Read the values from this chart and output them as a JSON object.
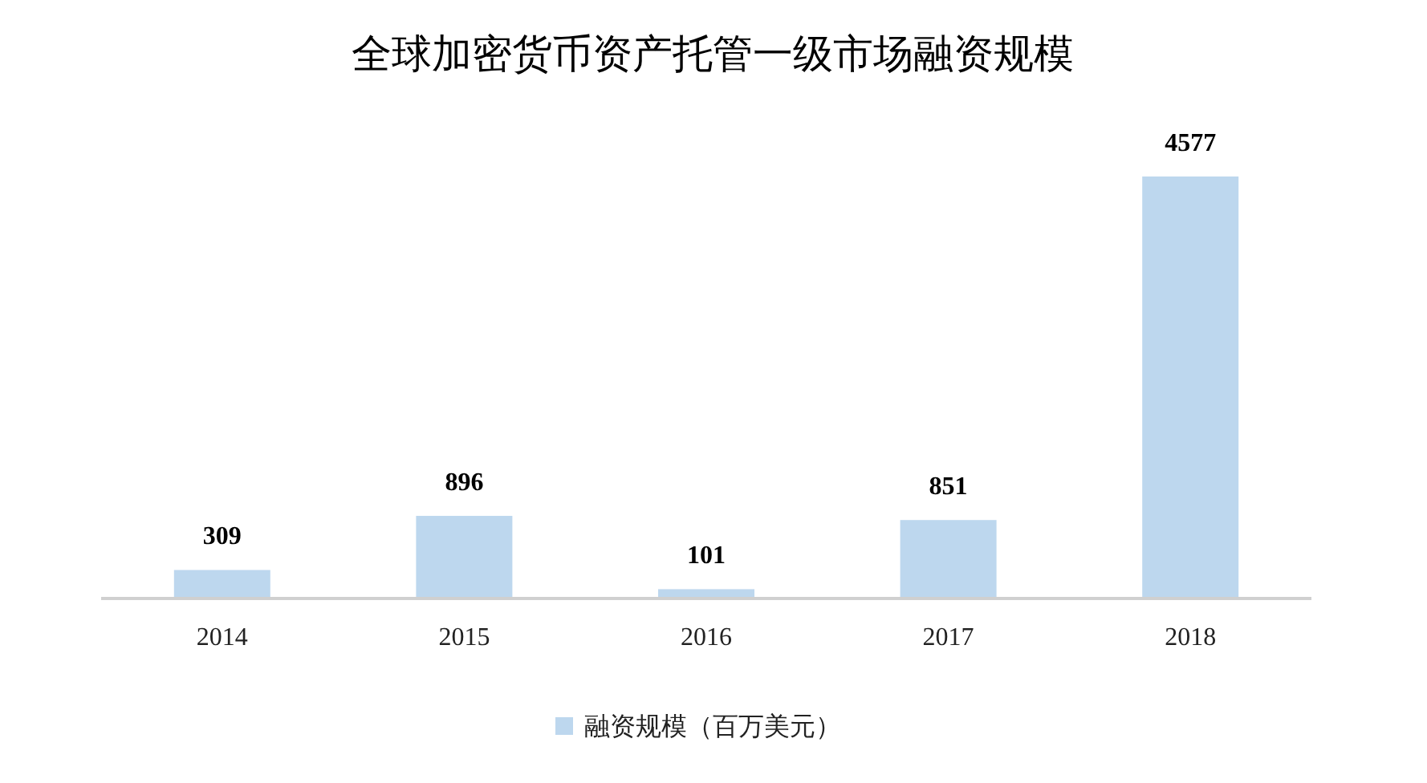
{
  "chart_data": {
    "type": "bar",
    "title": "全球加密货币资产托管一级市场融资规模",
    "categories": [
      "2014",
      "2015",
      "2016",
      "2017",
      "2018"
    ],
    "series": [
      {
        "name": "融资规模（百万美元）",
        "color": "#bdd7ee",
        "values": [
          309,
          896,
          101,
          851,
          4577
        ]
      }
    ],
    "data_labels": true,
    "legend": "bottom"
  }
}
